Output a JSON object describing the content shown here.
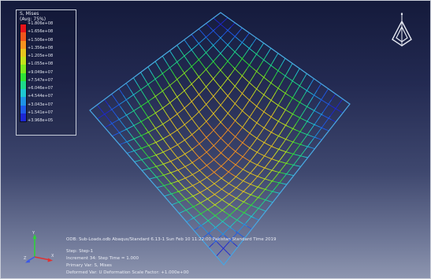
{
  "viewport": {
    "background_top": "#141a3b",
    "background_bottom": "#8e96b0",
    "mesh_outline_color": "#4aa8e0"
  },
  "legend": {
    "title": "S, Mises",
    "subtitle": "(Avg: 75%)",
    "labels": [
      "+1.806e+08",
      "+1.656e+08",
      "+1.506e+08",
      "+1.356e+08",
      "+1.205e+08",
      "+1.055e+08",
      "+9.049e+07",
      "+7.547e+07",
      "+6.046e+07",
      "+4.544e+07",
      "+3.043e+07",
      "+1.541e+07",
      "+3.968e+05"
    ],
    "colors": [
      "#e8141b",
      "#f0561c",
      "#f5921f",
      "#e6c61e",
      "#c3e31b",
      "#7ee81e",
      "#2fe236",
      "#1ed98a",
      "#1ec8d2",
      "#1e93e6",
      "#1e5ae8",
      "#1d27d2"
    ]
  },
  "mesh": {
    "corner_stress_color": "#2f8fd8",
    "center_stress_color": "#d8352a",
    "grid_divisions": 18
  },
  "view_triad_icon": "view-orientation-icon",
  "axis_triad": {
    "x_label": "X",
    "y_label": "Y",
    "z_label": "Z"
  },
  "info": {
    "odb": "ODB: Sub-Loads.odb   Abaqus/Standard 6.13-1   Sun Feb 10 11:22:00 Pakistan Standard Time 2019",
    "step": "Step: Step-1",
    "increment": "Increment    34: Step Time =    1.000",
    "primary_var": "Primary Var: S, Mises",
    "deformed_var": "Deformed Var: U   Deformation Scale Factor: +1.000e+00"
  }
}
